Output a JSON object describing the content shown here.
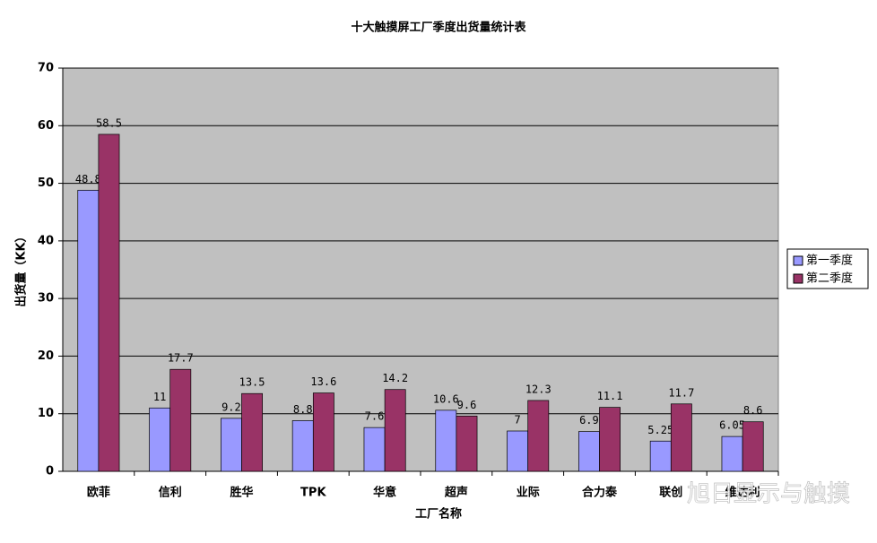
{
  "chart_data": {
    "type": "bar",
    "title": "十大触摸屏工厂季度出货量统计表",
    "y_label": "出货量（KK）",
    "x_label": "工厂名称",
    "watermark": "旭日显示与触摸",
    "categories": [
      "欧菲",
      "信利",
      "胜华",
      "TPK",
      "华意",
      "超声",
      "业际",
      "合力泰",
      "联创",
      "维达利"
    ],
    "series": [
      {
        "name": "第一季度",
        "color": "#9999ff",
        "values": [
          48.8,
          11,
          9.2,
          8.8,
          7.6,
          10.6,
          7,
          6.9,
          5.25,
          6.05
        ]
      },
      {
        "name": "第二季度",
        "color": "#993366",
        "values": [
          58.5,
          17.7,
          13.5,
          13.6,
          14.2,
          9.6,
          12.3,
          11.1,
          11.7,
          8.6
        ]
      }
    ],
    "ylim": [
      0,
      70
    ],
    "yticks": [
      0,
      10,
      20,
      30,
      40,
      50,
      60,
      70
    ],
    "grid": true,
    "legend": "right",
    "plot_background": "#c0c0c0"
  }
}
